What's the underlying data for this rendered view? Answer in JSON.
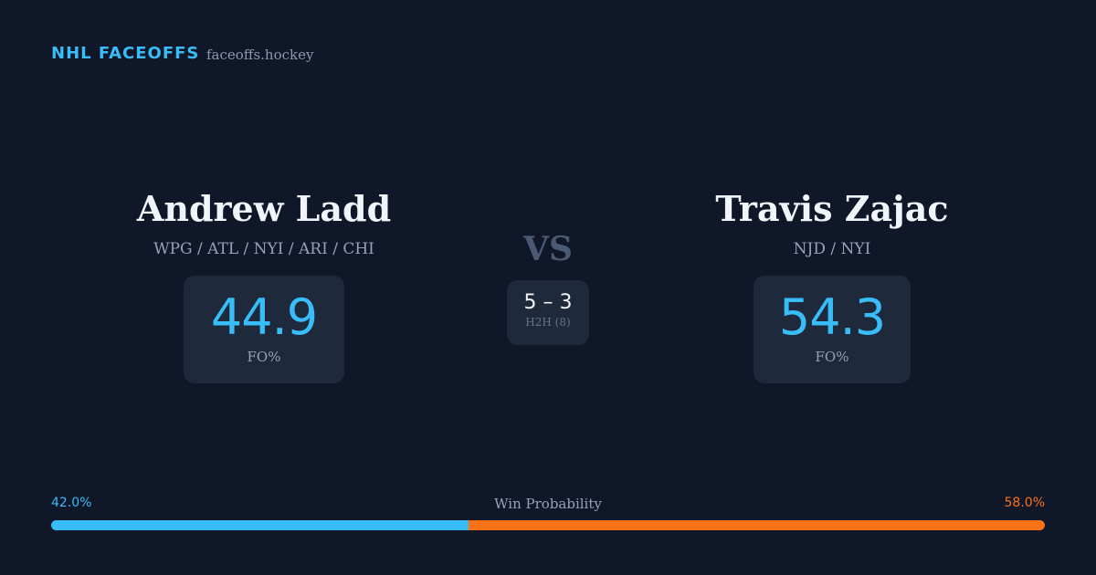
{
  "header": {
    "brand": "NHL FACEOFFS",
    "site": "faceoffs.hockey"
  },
  "players": [
    {
      "name": "Andrew Ladd",
      "teams": "WPG / ATL / NYI / ARI / CHI",
      "fo_pct": 44.9,
      "fo_label": "FO%"
    },
    {
      "name": "Travis Zajac",
      "teams": "NJD / NYI",
      "fo_pct": 54.3,
      "fo_label": "FO%"
    }
  ],
  "vs": "VS",
  "h2h": {
    "score": "5 – 3",
    "label": "H2H (8)"
  },
  "win_probability": {
    "label": "Win Probability",
    "values": [
      42.0,
      58.0
    ],
    "value_labels": [
      "42.0%",
      "58.0%"
    ],
    "colors": [
      "#38bdf8",
      "#f97316"
    ]
  }
}
